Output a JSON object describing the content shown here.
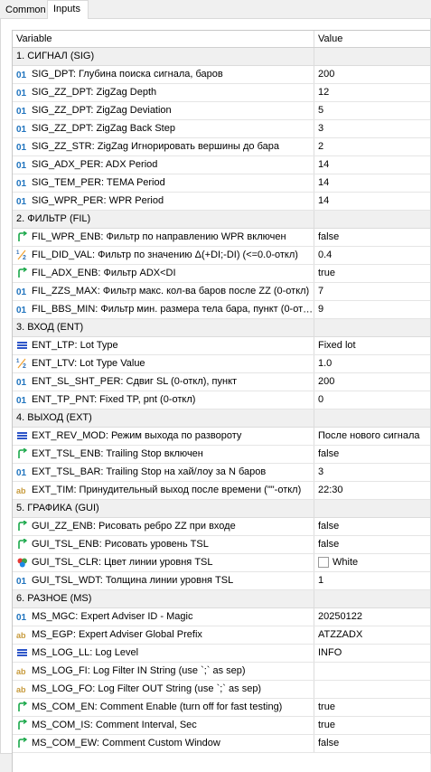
{
  "tabs": [
    "Common",
    "Inputs"
  ],
  "header": {
    "variable": "Variable",
    "value": "Value"
  },
  "rows": [
    {
      "type": "group",
      "name": "1. СИГНАЛ (SIG)"
    },
    {
      "type": "param",
      "icon": "int",
      "name": "SIG_DPT: Глубина поиска сигнала, баров",
      "value": "200"
    },
    {
      "type": "param",
      "icon": "int",
      "name": "SIG_ZZ_DPT: ZigZag Depth",
      "value": "12"
    },
    {
      "type": "param",
      "icon": "int",
      "name": "SIG_ZZ_DPT: ZigZag Deviation",
      "value": "5"
    },
    {
      "type": "param",
      "icon": "int",
      "name": "SIG_ZZ_DPT: ZigZag Back Step",
      "value": "3"
    },
    {
      "type": "param",
      "icon": "int",
      "name": "SIG_ZZ_STR: ZigZag Игнорировать вершины до бара",
      "value": "2"
    },
    {
      "type": "param",
      "icon": "int",
      "name": "SIG_ADX_PER: ADX Period",
      "value": "14"
    },
    {
      "type": "param",
      "icon": "int",
      "name": "SIG_TEM_PER: TEMA Period",
      "value": "14"
    },
    {
      "type": "param",
      "icon": "int",
      "name": "SIG_WPR_PER: WPR Period",
      "value": "14"
    },
    {
      "type": "group",
      "name": "2. ФИЛЬТР (FIL)"
    },
    {
      "type": "param",
      "icon": "bool",
      "name": "FIL_WPR_ENB: Фильтр по направлению WPR включен",
      "value": "false"
    },
    {
      "type": "param",
      "icon": "double",
      "name": "FIL_DID_VAL: Фильтр по значению Δ(+DI;-DI) (<=0.0-откл)",
      "value": "0.4"
    },
    {
      "type": "param",
      "icon": "bool",
      "name": "FIL_ADX_ENB: Фильтр ADX<DI",
      "value": "true"
    },
    {
      "type": "param",
      "icon": "int",
      "name": "FIL_ZZS_MAX: Фильтр макс. кол-ва баров после ZZ (0-откл)",
      "value": "7"
    },
    {
      "type": "param",
      "icon": "int",
      "name": "FIL_BBS_MIN: Фильтр мин. размера тела бара, пункт (0-отк...",
      "value": "9"
    },
    {
      "type": "group",
      "name": "3. ВХОД (ENT)"
    },
    {
      "type": "param",
      "icon": "enum",
      "name": "ENT_LTP: Lot Type",
      "value": "Fixed lot"
    },
    {
      "type": "param",
      "icon": "double",
      "name": "ENT_LTV: Lot Type Value",
      "value": "1.0"
    },
    {
      "type": "param",
      "icon": "int",
      "name": "ENT_SL_SHT_PER: Сдвиг SL (0-откл), пункт",
      "value": "200"
    },
    {
      "type": "param",
      "icon": "int",
      "name": "ENT_TP_PNT: Fixed TP, pnt (0-откл)",
      "value": "0"
    },
    {
      "type": "group",
      "name": "4. ВЫХОД (EXT)"
    },
    {
      "type": "param",
      "icon": "enum",
      "name": "EXT_REV_MOD: Режим выхода по развороту",
      "value": "После нового сигнала"
    },
    {
      "type": "param",
      "icon": "bool",
      "name": "EXT_TSL_ENB: Trailing Stop включен",
      "value": "false"
    },
    {
      "type": "param",
      "icon": "int",
      "name": "EXT_TSL_BAR: Trailing Stop на хай/лоу за N баров",
      "value": "3"
    },
    {
      "type": "param",
      "icon": "string",
      "name": "EXT_TIM: Принудительный выход после времени (\"\"-откл)",
      "value": "22:30"
    },
    {
      "type": "group",
      "name": "5. ГРАФИКА (GUI)"
    },
    {
      "type": "param",
      "icon": "bool",
      "name": "GUI_ZZ_ENB: Рисовать ребро ZZ при входе",
      "value": "false"
    },
    {
      "type": "param",
      "icon": "bool",
      "name": "GUI_TSL_ENB: Рисовать уровень TSL",
      "value": "false"
    },
    {
      "type": "param",
      "icon": "color",
      "name": "GUI_TSL_CLR: Цвет линии уровня TSL",
      "value": "White",
      "swatch": "#ffffff"
    },
    {
      "type": "param",
      "icon": "int",
      "name": "GUI_TSL_WDT: Толщина линии уровня TSL",
      "value": "1"
    },
    {
      "type": "group",
      "name": "6. РАЗНОЕ (MS)"
    },
    {
      "type": "param",
      "icon": "int",
      "name": "MS_MGC: Expert Adviser ID - Magic",
      "value": "20250122"
    },
    {
      "type": "param",
      "icon": "string",
      "name": "MS_EGP: Expert Adviser Global Prefix",
      "value": "ATZZADX"
    },
    {
      "type": "param",
      "icon": "enum",
      "name": "MS_LOG_LL: Log Level",
      "value": "INFO"
    },
    {
      "type": "param",
      "icon": "string",
      "name": "MS_LOG_FI: Log Filter IN String (use `;` as sep)",
      "value": ""
    },
    {
      "type": "param",
      "icon": "string",
      "name": "MS_LOG_FO: Log Filter OUT String (use `;` as sep)",
      "value": ""
    },
    {
      "type": "param",
      "icon": "bool",
      "name": "MS_COM_EN: Comment Enable (turn off for fast testing)",
      "value": "true"
    },
    {
      "type": "param",
      "icon": "bool",
      "name": "MS_COM_IS: Comment Interval, Sec",
      "value": "true"
    },
    {
      "type": "param",
      "icon": "bool",
      "name": "MS_COM_EW: Comment Custom Window",
      "value": "false"
    }
  ],
  "colors": {
    "int_icon": "#1e73be",
    "bool_icon": "#1aa84a",
    "double_icon": "#2f6fb5",
    "enum_icon": "#2d55c8",
    "string_icon": "#c79a3b"
  }
}
